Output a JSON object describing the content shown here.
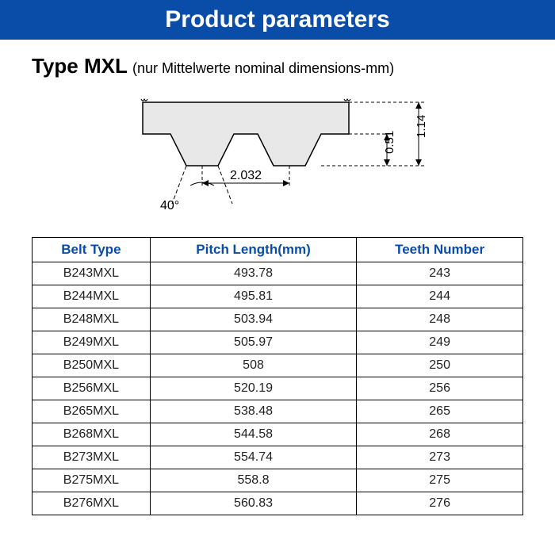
{
  "header": {
    "title": "Product parameters"
  },
  "subtitle": {
    "type": "Type MXL",
    "sub": "(nur Mittelwerte nominal dimensions-mm)"
  },
  "diagram": {
    "angle": "40°",
    "pitch": "2.032",
    "thickness": "1.14",
    "toothHeight": "0.51",
    "fill": "#e8e8e8",
    "stroke": "#000"
  },
  "table": {
    "columns": [
      "Belt Type",
      "Pitch Length(mm)",
      "Teeth Number"
    ],
    "rows": [
      [
        "B243MXL",
        "493.78",
        "243"
      ],
      [
        "B244MXL",
        "495.81",
        "244"
      ],
      [
        "B248MXL",
        "503.94",
        "248"
      ],
      [
        "B249MXL",
        "505.97",
        "249"
      ],
      [
        "B250MXL",
        "508",
        "250"
      ],
      [
        "B256MXL",
        "520.19",
        "256"
      ],
      [
        "B265MXL",
        "538.48",
        "265"
      ],
      [
        "B268MXL",
        "544.58",
        "268"
      ],
      [
        "B273MXL",
        "554.74",
        "273"
      ],
      [
        "B275MXL",
        "558.8",
        "275"
      ],
      [
        "B276MXL",
        "560.83",
        "276"
      ]
    ]
  }
}
